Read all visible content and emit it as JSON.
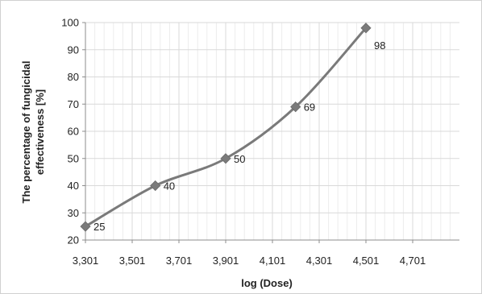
{
  "chart_data": {
    "type": "line",
    "xlabel": "log (Dose)",
    "ylabel": "The percentage of fungicidal effectiveness [%]",
    "x_ticks": [
      "3,301",
      "3,501",
      "3,701",
      "3,901",
      "4,101",
      "4,301",
      "4,501",
      "4,701"
    ],
    "y_ticks": [
      "20",
      "30",
      "40",
      "50",
      "60",
      "70",
      "80",
      "90",
      "100"
    ],
    "xlim": [
      3.301,
      4.901
    ],
    "ylim": [
      20,
      100
    ],
    "grid": true,
    "legend": "none",
    "smoothed": true,
    "marker": "diamond",
    "series": [
      {
        "x": [
          3.301,
          3.6,
          3.901,
          4.2,
          4.501
        ],
        "y": [
          25,
          40,
          50,
          69,
          98
        ],
        "labels": [
          "25",
          "40",
          "50",
          "69",
          "98"
        ]
      }
    ],
    "colors": {
      "line": "#7a7a7a",
      "marker": "#7a7a7a",
      "grid": "#d9d9d9",
      "axis": "#8c8c8c"
    }
  }
}
